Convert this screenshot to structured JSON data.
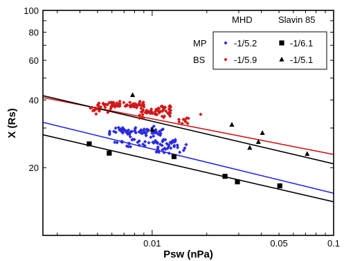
{
  "chart_data": {
    "type": "scatter",
    "xlabel": "Psw (nPa)",
    "ylabel": "X (Rs)",
    "xscale": "log",
    "yscale": "log",
    "xlim": [
      0.0025,
      0.1
    ],
    "ylim": [
      10,
      100
    ],
    "x_ticks": [
      {
        "value": 0.01,
        "label": "0.01"
      },
      {
        "value": 0.05,
        "label": "0.05"
      },
      {
        "value": 0.1,
        "label": "0.1"
      }
    ],
    "y_ticks": [
      {
        "value": 20,
        "label": "20"
      },
      {
        "value": 40,
        "label": "40"
      },
      {
        "value": 60,
        "label": "60"
      },
      {
        "value": 80,
        "label": "80"
      },
      {
        "value": 100,
        "label": "100"
      }
    ],
    "legend": {
      "col_headers": [
        "MHD",
        "Slavin 85"
      ],
      "row_labels": [
        "MP",
        "BS"
      ],
      "entries": [
        {
          "row": "MP",
          "col": "MHD",
          "marker": "diamond",
          "color": "#2a2ae0",
          "label": "-1/5.2"
        },
        {
          "row": "MP",
          "col": "Slavin 85",
          "marker": "square",
          "color": "#000000",
          "label": "-1/6.1"
        },
        {
          "row": "BS",
          "col": "MHD",
          "marker": "diamond",
          "color": "#d01818",
          "label": "-1/5.9"
        },
        {
          "row": "BS",
          "col": "Slavin 85",
          "marker": "triangle",
          "color": "#000000",
          "label": "-1/5.1"
        }
      ]
    },
    "series": [
      {
        "name": "MP MHD",
        "marker": "diamond",
        "color": "#2a2ae0",
        "clusters": [
          {
            "x_range": [
              0.0058,
              0.0115
            ],
            "y_range": [
              27.0,
              31.0
            ],
            "n": 70
          },
          {
            "x_range": [
              0.0062,
              0.0135
            ],
            "y_range": [
              24.5,
              27.2
            ],
            "n": 45
          },
          {
            "x_range": [
              0.0105,
              0.0155
            ],
            "y_range": [
              23.0,
              26.0
            ],
            "n": 20
          }
        ]
      },
      {
        "name": "BS MHD",
        "marker": "diamond",
        "color": "#d01818",
        "clusters": [
          {
            "x_range": [
              0.005,
              0.009
            ],
            "y_range": [
              36.5,
              39.5
            ],
            "n": 70
          },
          {
            "x_range": [
              0.0085,
              0.013
            ],
            "y_range": [
              33.0,
              38.5
            ],
            "n": 60
          },
          {
            "x_range": [
              0.0045,
              0.0062
            ],
            "y_range": [
              34.5,
              37.5
            ],
            "n": 12
          },
          {
            "x_range": [
              0.014,
              0.016
            ],
            "y_range": [
              31.0,
              33.5
            ],
            "n": 10
          }
        ],
        "extra_points": [
          {
            "x": 0.0185,
            "y": 34.5
          }
        ]
      },
      {
        "name": "MP Slavin 85",
        "marker": "square",
        "color": "#000000",
        "points": [
          {
            "x": 0.0045,
            "y": 25.5
          },
          {
            "x": 0.0058,
            "y": 23.2
          },
          {
            "x": 0.0132,
            "y": 22.4
          },
          {
            "x": 0.0252,
            "y": 18.3
          },
          {
            "x": 0.0295,
            "y": 17.3
          },
          {
            "x": 0.0505,
            "y": 16.6
          }
        ]
      },
      {
        "name": "BS Slavin 85",
        "marker": "triangle",
        "color": "#000000",
        "points": [
          {
            "x": 0.0078,
            "y": 42.0
          },
          {
            "x": 0.01,
            "y": 29.5
          },
          {
            "x": 0.0275,
            "y": 31.0
          },
          {
            "x": 0.0345,
            "y": 24.5
          },
          {
            "x": 0.0385,
            "y": 26.0
          },
          {
            "x": 0.0405,
            "y": 28.5
          },
          {
            "x": 0.0715,
            "y": 23.0
          }
        ]
      }
    ],
    "fit_lines": [
      {
        "name": "BS MHD fit",
        "color": "#d01818",
        "x": [
          0.0025,
          0.1
        ],
        "y": [
          41.0,
          22.9
        ]
      },
      {
        "name": "BS Slavin 85 fit",
        "color": "#000000",
        "x": [
          0.0025,
          0.1
        ],
        "y": [
          41.8,
          20.8
        ]
      },
      {
        "name": "MP MHD fit",
        "color": "#2a2ae0",
        "x": [
          0.0025,
          0.1
        ],
        "y": [
          31.8,
          15.4
        ]
      },
      {
        "name": "MP Slavin 85 fit",
        "color": "#000000",
        "x": [
          0.0025,
          0.1
        ],
        "y": [
          28.0,
          14.1
        ]
      }
    ]
  }
}
